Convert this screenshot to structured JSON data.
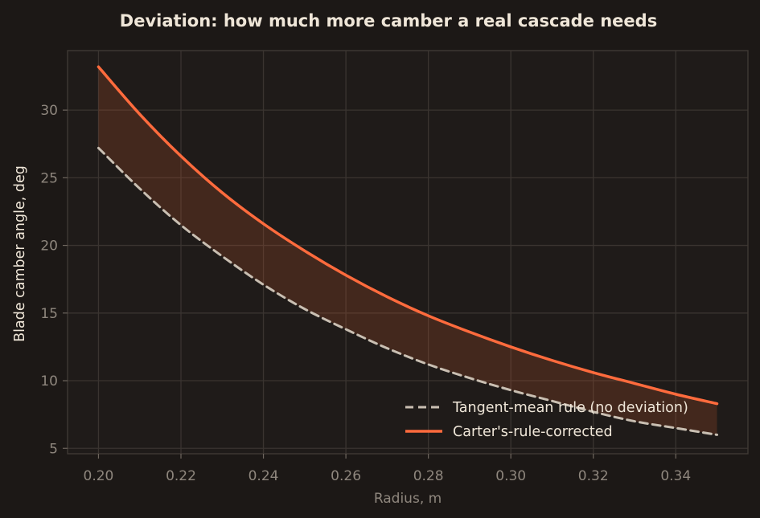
{
  "chart_data": {
    "type": "line",
    "title": "Deviation: how much more camber a real cascade needs",
    "xlabel": "Radius, m",
    "ylabel": "Blade camber angle, deg",
    "xlim": [
      0.1925,
      0.3575
    ],
    "ylim": [
      4.6,
      34.4
    ],
    "xticks": [
      0.2,
      0.22,
      0.24,
      0.26,
      0.28,
      0.3,
      0.32,
      0.34
    ],
    "xtick_labels": [
      "0.20",
      "0.22",
      "0.24",
      "0.26",
      "0.28",
      "0.30",
      "0.32",
      "0.34"
    ],
    "yticks": [
      5,
      10,
      15,
      20,
      25,
      30
    ],
    "ytick_labels": [
      "5",
      "10",
      "15",
      "20",
      "25",
      "30"
    ],
    "grid": true,
    "legend_position": "lower-right",
    "fill_between": {
      "series": [
        0,
        1
      ],
      "color": "#c2552f",
      "opacity": 0.22
    },
    "x": [
      0.2,
      0.21,
      0.22,
      0.23,
      0.24,
      0.25,
      0.26,
      0.27,
      0.28,
      0.29,
      0.3,
      0.31,
      0.32,
      0.33,
      0.34,
      0.35
    ],
    "series": [
      {
        "name": "Tangent-mean rule (no deviation)",
        "style": "dashed",
        "color": "#c9bfb2",
        "values": [
          27.2,
          24.2,
          21.5,
          19.2,
          17.1,
          15.3,
          13.8,
          12.4,
          11.2,
          10.2,
          9.3,
          8.5,
          7.7,
          7.0,
          6.5,
          6.0
        ]
      },
      {
        "name": "Carter's-rule-corrected",
        "style": "solid",
        "color": "#ff6b3d",
        "values": [
          33.2,
          29.7,
          26.6,
          23.9,
          21.6,
          19.6,
          17.8,
          16.2,
          14.8,
          13.6,
          12.5,
          11.5,
          10.6,
          9.8,
          9.0,
          8.3
        ]
      }
    ]
  }
}
